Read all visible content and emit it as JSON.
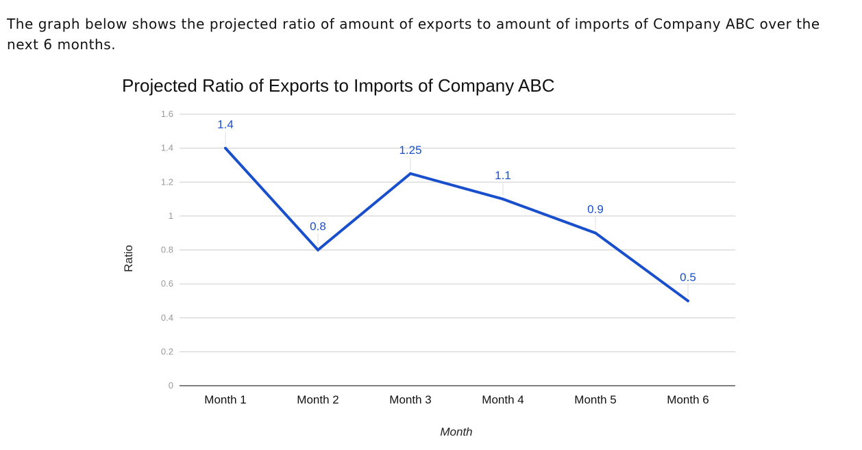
{
  "intro_text": "The graph below shows the projected ratio of amount of exports to amount of imports of Company ABC over the next 6 months.",
  "chart_data": {
    "type": "line",
    "title": "Projected Ratio of Exports to Imports of Company ABC",
    "xlabel": "Month",
    "ylabel": "Ratio",
    "categories": [
      "Month 1",
      "Month 2",
      "Month 3",
      "Month 4",
      "Month 5",
      "Month 6"
    ],
    "series": [
      {
        "values": [
          1.4,
          0.8,
          1.25,
          1.1,
          0.9,
          0.5
        ],
        "data_labels": [
          "1.4",
          "0.8",
          "1.25",
          "1.1",
          "0.9",
          "0.5"
        ],
        "color": "#1a4fcc"
      }
    ],
    "ylim": [
      0,
      1.6
    ],
    "yticks": [
      0,
      0.2,
      0.4,
      0.6,
      0.8,
      1,
      1.2,
      1.4,
      1.6
    ],
    "ytick_labels": [
      "0",
      "0.2",
      "0.4",
      "0.6",
      "0.8",
      "1",
      "1.2",
      "1.4",
      "1.6"
    ],
    "grid": true,
    "legend": "none",
    "colors": {
      "line": "#1a4fcc",
      "gridline": "#cccccc",
      "baseline": "#333333",
      "tick_text": "#999999"
    }
  }
}
